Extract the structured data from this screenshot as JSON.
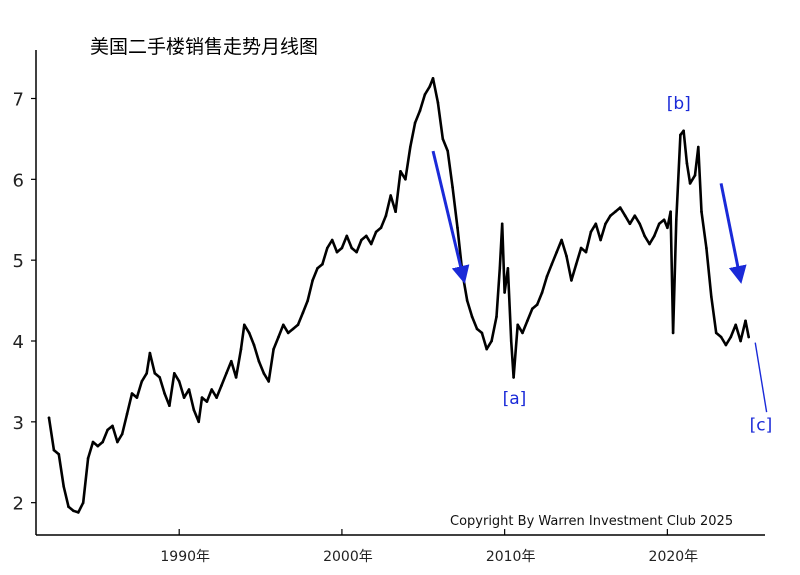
{
  "chart_data": {
    "type": "line",
    "title": "美国二手楼销售走势月线图",
    "xlabel": "",
    "ylabel": "",
    "xlim": [
      1981.2,
      2026.0
    ],
    "ylim": [
      1.6,
      7.6
    ],
    "x_ticks": [
      {
        "value": 1990,
        "label": "1990年"
      },
      {
        "value": 2000,
        "label": "2000年"
      },
      {
        "value": 2010,
        "label": "2010年"
      },
      {
        "value": 2020,
        "label": "2020年"
      }
    ],
    "y_ticks": [
      {
        "value": 2,
        "label": "2"
      },
      {
        "value": 3,
        "label": "3"
      },
      {
        "value": 4,
        "label": "4"
      },
      {
        "value": 5,
        "label": "5"
      },
      {
        "value": 6,
        "label": "6"
      },
      {
        "value": 7,
        "label": "7"
      }
    ],
    "grid": false,
    "credit": "Copyright By Warren Investment Club 2025",
    "series": [
      {
        "color": "#000000",
        "points": [
          [
            1982.0,
            3.05
          ],
          [
            1982.3,
            2.65
          ],
          [
            1982.6,
            2.6
          ],
          [
            1982.9,
            2.2
          ],
          [
            1983.2,
            1.95
          ],
          [
            1983.5,
            1.9
          ],
          [
            1983.8,
            1.88
          ],
          [
            1984.1,
            2.0
          ],
          [
            1984.4,
            2.55
          ],
          [
            1984.7,
            2.75
          ],
          [
            1985.0,
            2.7
          ],
          [
            1985.3,
            2.75
          ],
          [
            1985.6,
            2.9
          ],
          [
            1985.9,
            2.95
          ],
          [
            1986.2,
            2.75
          ],
          [
            1986.5,
            2.85
          ],
          [
            1986.8,
            3.1
          ],
          [
            1987.1,
            3.35
          ],
          [
            1987.4,
            3.3
          ],
          [
            1987.7,
            3.5
          ],
          [
            1988.0,
            3.6
          ],
          [
            1988.2,
            3.85
          ],
          [
            1988.5,
            3.6
          ],
          [
            1988.8,
            3.55
          ],
          [
            1989.1,
            3.35
          ],
          [
            1989.4,
            3.2
          ],
          [
            1989.7,
            3.6
          ],
          [
            1990.0,
            3.5
          ],
          [
            1990.3,
            3.3
          ],
          [
            1990.6,
            3.4
          ],
          [
            1990.9,
            3.15
          ],
          [
            1991.2,
            3.0
          ],
          [
            1991.4,
            3.3
          ],
          [
            1991.7,
            3.25
          ],
          [
            1992.0,
            3.4
          ],
          [
            1992.3,
            3.3
          ],
          [
            1992.6,
            3.45
          ],
          [
            1992.9,
            3.6
          ],
          [
            1993.2,
            3.75
          ],
          [
            1993.5,
            3.55
          ],
          [
            1993.8,
            3.9
          ],
          [
            1994.0,
            4.2
          ],
          [
            1994.3,
            4.1
          ],
          [
            1994.6,
            3.95
          ],
          [
            1994.9,
            3.75
          ],
          [
            1995.2,
            3.6
          ],
          [
            1995.5,
            3.5
          ],
          [
            1995.8,
            3.9
          ],
          [
            1996.1,
            4.05
          ],
          [
            1996.4,
            4.2
          ],
          [
            1996.7,
            4.1
          ],
          [
            1997.0,
            4.15
          ],
          [
            1997.3,
            4.2
          ],
          [
            1997.6,
            4.35
          ],
          [
            1997.9,
            4.5
          ],
          [
            1998.2,
            4.75
          ],
          [
            1998.5,
            4.9
          ],
          [
            1998.8,
            4.95
          ],
          [
            1999.1,
            5.15
          ],
          [
            1999.4,
            5.25
          ],
          [
            1999.7,
            5.1
          ],
          [
            2000.0,
            5.15
          ],
          [
            2000.3,
            5.3
          ],
          [
            2000.6,
            5.15
          ],
          [
            2000.9,
            5.1
          ],
          [
            2001.2,
            5.25
          ],
          [
            2001.5,
            5.3
          ],
          [
            2001.8,
            5.2
          ],
          [
            2002.1,
            5.35
          ],
          [
            2002.4,
            5.4
          ],
          [
            2002.7,
            5.55
          ],
          [
            2003.0,
            5.8
          ],
          [
            2003.3,
            5.6
          ],
          [
            2003.6,
            6.1
          ],
          [
            2003.9,
            6.0
          ],
          [
            2004.2,
            6.4
          ],
          [
            2004.5,
            6.7
          ],
          [
            2004.8,
            6.85
          ],
          [
            2005.1,
            7.05
          ],
          [
            2005.4,
            7.15
          ],
          [
            2005.6,
            7.25
          ],
          [
            2005.9,
            6.95
          ],
          [
            2006.2,
            6.5
          ],
          [
            2006.5,
            6.35
          ],
          [
            2006.8,
            5.9
          ],
          [
            2007.1,
            5.4
          ],
          [
            2007.4,
            4.85
          ],
          [
            2007.7,
            4.5
          ],
          [
            2008.0,
            4.3
          ],
          [
            2008.3,
            4.15
          ],
          [
            2008.6,
            4.1
          ],
          [
            2008.9,
            3.9
          ],
          [
            2009.2,
            4.0
          ],
          [
            2009.5,
            4.3
          ],
          [
            2009.7,
            4.9
          ],
          [
            2009.85,
            5.45
          ],
          [
            2010.0,
            4.6
          ],
          [
            2010.2,
            4.9
          ],
          [
            2010.4,
            4.0
          ],
          [
            2010.55,
            3.55
          ],
          [
            2010.8,
            4.2
          ],
          [
            2011.1,
            4.1
          ],
          [
            2011.4,
            4.25
          ],
          [
            2011.7,
            4.4
          ],
          [
            2012.0,
            4.45
          ],
          [
            2012.3,
            4.6
          ],
          [
            2012.6,
            4.8
          ],
          [
            2012.9,
            4.95
          ],
          [
            2013.2,
            5.1
          ],
          [
            2013.5,
            5.25
          ],
          [
            2013.8,
            5.05
          ],
          [
            2014.1,
            4.75
          ],
          [
            2014.4,
            4.95
          ],
          [
            2014.7,
            5.15
          ],
          [
            2015.0,
            5.1
          ],
          [
            2015.3,
            5.35
          ],
          [
            2015.6,
            5.45
          ],
          [
            2015.9,
            5.25
          ],
          [
            2016.2,
            5.45
          ],
          [
            2016.5,
            5.55
          ],
          [
            2016.8,
            5.6
          ],
          [
            2017.1,
            5.65
          ],
          [
            2017.4,
            5.55
          ],
          [
            2017.7,
            5.45
          ],
          [
            2018.0,
            5.55
          ],
          [
            2018.3,
            5.45
          ],
          [
            2018.6,
            5.3
          ],
          [
            2018.9,
            5.2
          ],
          [
            2019.2,
            5.3
          ],
          [
            2019.5,
            5.45
          ],
          [
            2019.8,
            5.5
          ],
          [
            2020.0,
            5.4
          ],
          [
            2020.2,
            5.6
          ],
          [
            2020.35,
            4.1
          ],
          [
            2020.55,
            5.5
          ],
          [
            2020.8,
            6.55
          ],
          [
            2021.0,
            6.6
          ],
          [
            2021.2,
            6.2
          ],
          [
            2021.4,
            5.95
          ],
          [
            2021.7,
            6.05
          ],
          [
            2021.9,
            6.4
          ],
          [
            2022.1,
            5.6
          ],
          [
            2022.4,
            5.15
          ],
          [
            2022.7,
            4.55
          ],
          [
            2023.0,
            4.1
          ],
          [
            2023.3,
            4.05
          ],
          [
            2023.6,
            3.95
          ],
          [
            2023.9,
            4.05
          ],
          [
            2024.2,
            4.2
          ],
          [
            2024.5,
            4.0
          ],
          [
            2024.8,
            4.25
          ],
          [
            2025.0,
            4.05
          ]
        ]
      }
    ],
    "annotations": [
      {
        "text": "[a]",
        "x": 2010.6,
        "y": 3.22
      },
      {
        "text": "[b]",
        "x": 2020.7,
        "y": 6.87
      },
      {
        "text": "[c]",
        "x": 2025.75,
        "y": 2.89
      }
    ],
    "trend_arrows": [
      {
        "from": [
          2005.6,
          6.35
        ],
        "to": [
          2007.5,
          4.75
        ]
      },
      {
        "from": [
          2023.3,
          5.95
        ],
        "to": [
          2024.5,
          4.75
        ]
      },
      {
        "from": [
          2025.4,
          3.98
        ],
        "to": [
          2026.1,
          3.12
        ]
      }
    ]
  }
}
